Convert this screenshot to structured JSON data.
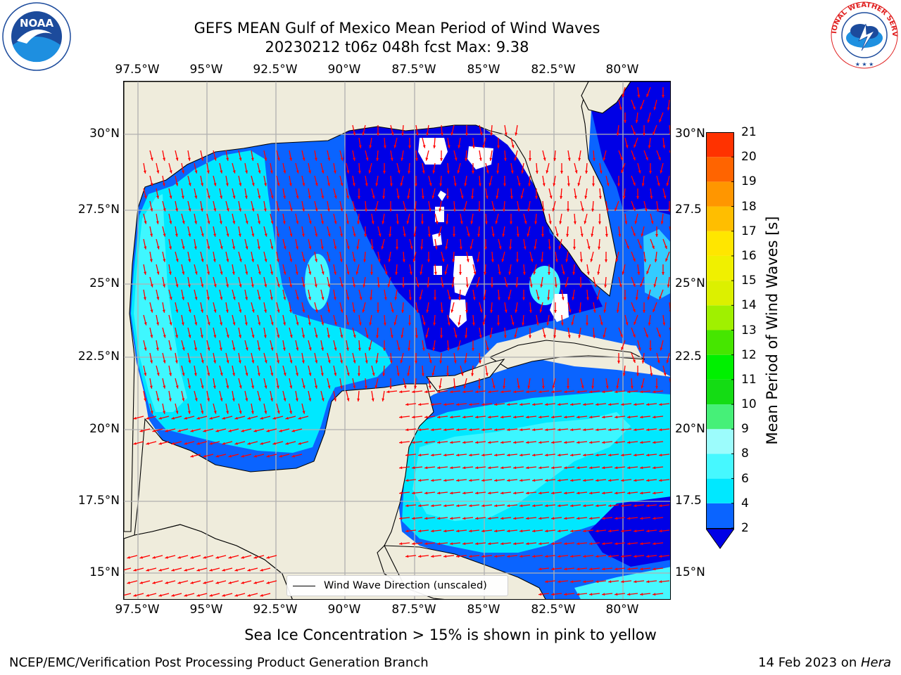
{
  "header": {
    "title_line1": "GEFS MEAN Gulf of Mexico Mean Period of Wind Waves",
    "title_line2": "20230212 t06z 048h fcst   Max: 9.38"
  },
  "logos": {
    "left": {
      "name": "noaa-logo",
      "text": "NOAA",
      "ring_text": "NATIONAL OCEANIC AND ATMOSPHERIC ADMINISTRATION · U.S. DEPARTMENT OF COMMERCE"
    },
    "right": {
      "name": "nws-logo",
      "ring_text": "NATIONAL WEATHER SERVICE"
    }
  },
  "map": {
    "lon_labels": [
      "97.5°W",
      "95°W",
      "92.5°W",
      "90°W",
      "87.5°W",
      "85°W",
      "82.5°W",
      "80°W"
    ],
    "lat_labels_left": [
      "30°N",
      "27.5°N",
      "25°N",
      "22.5°N",
      "20°N",
      "17.5°N",
      "15°N"
    ],
    "lat_labels_right": [
      "30°N",
      "27.5",
      "25°N",
      "22.5",
      "20°N",
      "17.5",
      "15°N"
    ],
    "legend_label": "Wind Wave Direction (unscaled)",
    "land_color": "#efecdc",
    "arrow_color": "#ff0000"
  },
  "colorbar": {
    "label": "Mean Period of Wind Waves [s]",
    "ticks": [
      "2",
      "4",
      "6",
      "8",
      "9",
      "10",
      "11",
      "12",
      "13",
      "14",
      "15",
      "16",
      "17",
      "18",
      "19",
      "20",
      "21"
    ],
    "colors": [
      "#0a64ff",
      "#00e8ff",
      "#46f8ff",
      "#9cfcfc",
      "#46f078",
      "#14dc14",
      "#00f000",
      "#46e600",
      "#a0f000",
      "#dcf000",
      "#f0f000",
      "#ffe600",
      "#ffbe00",
      "#ff9600",
      "#ff6400",
      "#ff3200"
    ],
    "under_color": "#0000e6"
  },
  "footer": {
    "note": "Sea Ice Concentration > 15% is shown in pink to yellow",
    "left": "NCEP/EMC/Verification Post Processing Product Generation Branch",
    "right_date": "14 Feb 2023 on ",
    "right_host": "Hera"
  }
}
